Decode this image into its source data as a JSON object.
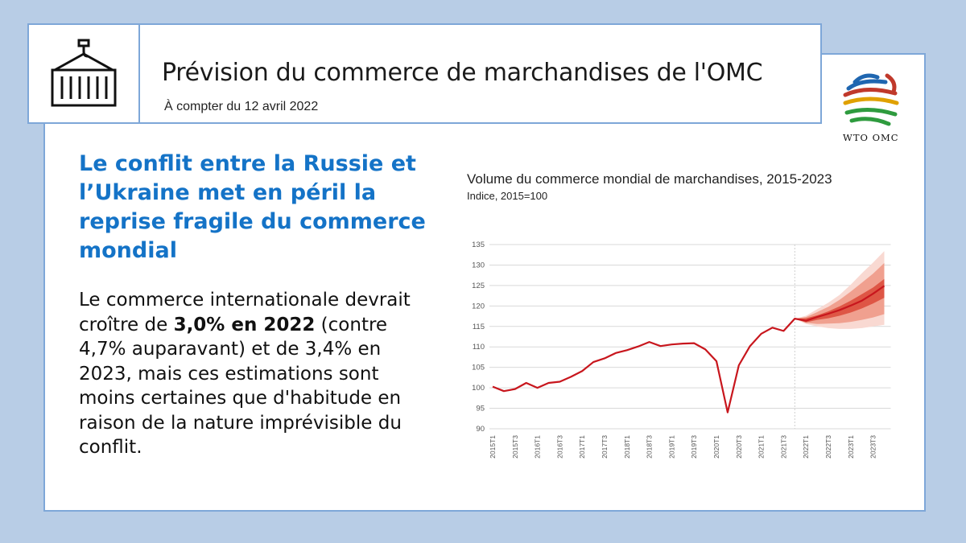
{
  "header": {
    "title": "Prévision du commerce de marchandises de l'OMC",
    "subtitle": "À compter du 12 avril 2022",
    "icon": "shipping-container-icon"
  },
  "logo": {
    "text": "WTO OMC"
  },
  "headline": "Le conflit entre la Russie et l’Ukraine met en péril la reprise fragile du commerce mondial",
  "body": {
    "part1": "Le commerce internationale devrait croître de ",
    "bold": "3,0% en 2022",
    "part2": " (contre 4,7% auparavant) et de 3,4% en 2023, mais ces estimations sont moins certaines que d'habitude en raison de la nature imprévisible du conflit."
  },
  "colors": {
    "accent": "#1473c7",
    "border": "#7ea7d8",
    "background": "#b8cde6",
    "line": "#c8161d"
  },
  "chart_data": {
    "type": "line",
    "title": "Volume du commerce mondial de marchandises, 2015-2023",
    "subtitle": "Indice, 2015=100",
    "ylim": [
      90,
      135
    ],
    "yticks": [
      90,
      95,
      100,
      105,
      110,
      115,
      120,
      125,
      130,
      135
    ],
    "grid": true,
    "x": [
      "2015T1",
      "2015T2",
      "2015T3",
      "2015T4",
      "2016T1",
      "2016T2",
      "2016T3",
      "2016T4",
      "2017T1",
      "2017T2",
      "2017T3",
      "2017T4",
      "2018T1",
      "2018T2",
      "2018T3",
      "2018T4",
      "2019T1",
      "2019T2",
      "2019T3",
      "2019T4",
      "2020T1",
      "2020T2",
      "2020T3",
      "2020T4",
      "2021T1",
      "2021T2",
      "2021T3",
      "2021T4",
      "2022T1",
      "2022T2",
      "2022T3",
      "2022T4",
      "2023T1",
      "2023T2",
      "2023T3",
      "2023T4"
    ],
    "xticklabels": [
      "2015T1",
      "2015T3",
      "2016T1",
      "2016T3",
      "2017T1",
      "2017T3",
      "2018T1",
      "2018T3",
      "2019T1",
      "2019T3",
      "2020T1",
      "2020T3",
      "2021T1",
      "2021T3",
      "2022T1",
      "2022T3",
      "2023T1",
      "2023T3"
    ],
    "series": [
      {
        "values": [
          100.3,
          99.2,
          99.7,
          101.2,
          100.0,
          101.2,
          101.5,
          102.7,
          104.1,
          106.3,
          107.2,
          108.5,
          109.2,
          110.1,
          111.2,
          110.2,
          110.6,
          110.8,
          110.9,
          109.4,
          106.5,
          94.0,
          105.5,
          110.2,
          113.2,
          114.7,
          113.9,
          116.9,
          116.4,
          117.3,
          118.1,
          119.0,
          120.1,
          121.3,
          123.0,
          124.9
        ]
      }
    ],
    "forecast_start": "2021T4",
    "uncertainty_bands": [
      {
        "upper": [
          116.9,
          117.6,
          119.2,
          120.8,
          122.7,
          125.2,
          128.0,
          130.6,
          133.4
        ],
        "lower": [
          116.9,
          115.6,
          115.0,
          114.6,
          114.4,
          114.4,
          114.6,
          115.0,
          115.4
        ]
      },
      {
        "upper": [
          116.9,
          117.3,
          118.5,
          119.8,
          121.5,
          123.5,
          125.7,
          127.9,
          130.5
        ],
        "lower": [
          116.9,
          115.9,
          115.6,
          115.7,
          115.8,
          116.1,
          116.6,
          117.2,
          118.0
        ]
      },
      {
        "upper": [
          116.9,
          117.0,
          117.7,
          118.7,
          119.9,
          121.3,
          122.9,
          124.5,
          126.6
        ],
        "lower": [
          116.9,
          116.0,
          116.6,
          117.0,
          117.6,
          118.4,
          119.4,
          120.6,
          122.0
        ]
      }
    ]
  }
}
